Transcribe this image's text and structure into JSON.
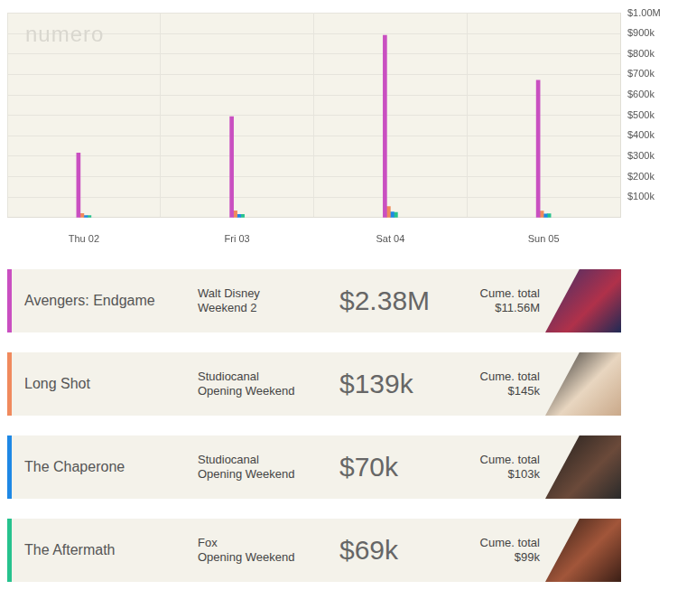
{
  "chart_data": {
    "type": "bar",
    "categories": [
      "Thu 02",
      "Fri 03",
      "Sat 04",
      "Sun 05"
    ],
    "series": [
      {
        "name": "Avengers: Endgame",
        "color": "#c94fc1",
        "values": [
          316000,
          494000,
          892000,
          672000
        ]
      },
      {
        "name": "Long Shot",
        "color": "#f08a5d",
        "values": [
          20000,
          33000,
          54000,
          32000
        ]
      },
      {
        "name": "The Chaperone",
        "color": "#1e88e5",
        "values": [
          10000,
          15000,
          27000,
          18000
        ]
      },
      {
        "name": "The Aftermath",
        "color": "#26c28e",
        "values": [
          10000,
          15000,
          25000,
          19000
        ]
      }
    ],
    "ylim": [
      0,
      1000000
    ],
    "yticks": [
      {
        "value": 100000,
        "label": "$100k"
      },
      {
        "value": 200000,
        "label": "$200k"
      },
      {
        "value": 300000,
        "label": "$300k"
      },
      {
        "value": 400000,
        "label": "$400k"
      },
      {
        "value": 500000,
        "label": "$500k"
      },
      {
        "value": 600000,
        "label": "$600k"
      },
      {
        "value": 700000,
        "label": "$700k"
      },
      {
        "value": 800000,
        "label": "$800k"
      },
      {
        "value": 900000,
        "label": "$900k"
      },
      {
        "value": 1000000,
        "label": "$1.00M"
      }
    ],
    "grid": true
  },
  "watermark": "numero",
  "cume_label": "Cume. total",
  "films": [
    {
      "distributor": "Walt Disney",
      "weekend": "Weekend 2",
      "gross": "$2.38M",
      "cume": "$11.56M"
    },
    {
      "distributor": "Studiocanal",
      "weekend": "Opening Weekend",
      "gross": "$139k",
      "cume": "$145k"
    },
    {
      "distributor": "Studiocanal",
      "weekend": "Opening Weekend",
      "gross": "$70k",
      "cume": "$103k"
    },
    {
      "distributor": "Fox",
      "weekend": "Opening Weekend",
      "gross": "$69k",
      "cume": "$99k"
    }
  ]
}
